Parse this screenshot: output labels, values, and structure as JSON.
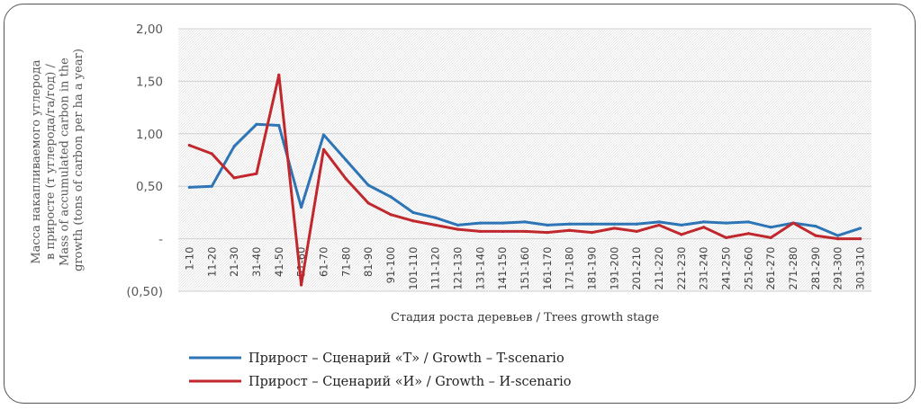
{
  "chart_data": {
    "type": "line",
    "xlabel": "Стадия роста деревьев / Trees growth stage",
    "ylabel_lines": [
      "Масса накапливаемого углерода",
      "в приросте (т углерода/га/год) /",
      "Mass of accumulated carbon in the",
      "growth (tons of carbon per ha a year)"
    ],
    "ylim": [
      -0.5,
      2.0
    ],
    "yticks": [
      2.0,
      1.5,
      1.0,
      0.5,
      0,
      -0.5
    ],
    "ytick_labels": [
      "2,00",
      "1,50",
      "1,00",
      "0,50",
      "-",
      "(0,50)"
    ],
    "grid": true,
    "legend_position": "bottom-left",
    "categories": [
      "1-10",
      "11-20",
      "21-30",
      "31-40",
      "41-50",
      "51-60",
      "61-70",
      "71-80",
      "81-90",
      "91-100",
      "101-110",
      "111-120",
      "121-130",
      "131-140",
      "141-150",
      "151-160",
      "161-170",
      "171-180",
      "181-190",
      "191-200",
      "201-210",
      "211-220",
      "221-230",
      "231-240",
      "241-250",
      "251-260",
      "261-270",
      "271-280",
      "281-290",
      "291-300",
      "301-310"
    ],
    "series": [
      {
        "name": "Прирост – Сценарий «Т» / Growth – T-scenario",
        "color": "#2E75B6",
        "values": [
          0.49,
          0.5,
          0.88,
          1.09,
          1.08,
          0.3,
          0.99,
          0.75,
          0.51,
          0.4,
          0.25,
          0.2,
          0.13,
          0.15,
          0.15,
          0.16,
          0.13,
          0.14,
          0.14,
          0.14,
          0.14,
          0.16,
          0.13,
          0.16,
          0.15,
          0.16,
          0.11,
          0.15,
          0.12,
          0.03,
          0.1
        ]
      },
      {
        "name": "Прирост – Сценарий «И» / Growth – И-scenario",
        "color": "#C0282D",
        "values": [
          0.89,
          0.81,
          0.58,
          0.62,
          1.56,
          -0.44,
          0.85,
          0.57,
          0.34,
          0.23,
          0.17,
          0.13,
          0.09,
          0.07,
          0.07,
          0.07,
          0.06,
          0.08,
          0.06,
          0.1,
          0.07,
          0.13,
          0.04,
          0.11,
          0.01,
          0.05,
          0.01,
          0.15,
          0.03,
          0.0,
          0.0
        ]
      }
    ]
  }
}
